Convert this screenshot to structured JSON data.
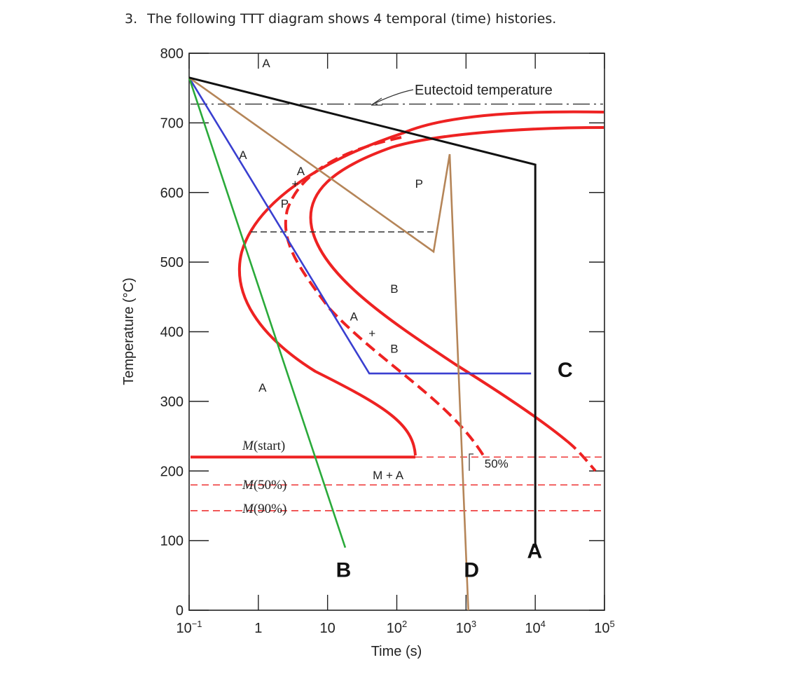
{
  "question": {
    "number": "3.",
    "text": "The following TTT diagram shows 4 temporal (time) histories."
  },
  "chart_data": {
    "type": "line",
    "title": "",
    "xlabel": "Time (s)",
    "ylabel": "Temperature (°C)",
    "x_scale": "log",
    "xlim": [
      0.1,
      100000
    ],
    "ylim": [
      0,
      800
    ],
    "x_ticks": [
      {
        "value": 0.1,
        "base": "10",
        "exp": "−1"
      },
      {
        "value": 1,
        "base": "1",
        "exp": ""
      },
      {
        "value": 10,
        "base": "10",
        "exp": ""
      },
      {
        "value": 100,
        "base": "10",
        "exp": "2"
      },
      {
        "value": 1000,
        "base": "10",
        "exp": "3"
      },
      {
        "value": 10000,
        "base": "10",
        "exp": "4"
      },
      {
        "value": 100000,
        "base": "10",
        "exp": "5"
      }
    ],
    "y_ticks": [
      0,
      100,
      200,
      300,
      400,
      500,
      600,
      700,
      800
    ],
    "reference_lines": [
      {
        "name": "eutectoid",
        "y": 727,
        "label": "Eutectoid temperature"
      },
      {
        "name": "m-start",
        "y": 220,
        "label": "M(start)",
        "label_main": "M",
        "label_paren": "(start)"
      },
      {
        "name": "m-50",
        "y": 180,
        "label": "M(50%)",
        "label_main": "M",
        "label_paren": "(50%)"
      },
      {
        "name": "m-90",
        "y": 143,
        "label": "M(90%)",
        "label_main": "M",
        "label_paren": "(90%)"
      }
    ],
    "region_labels": [
      {
        "text": "A",
        "x": 1.3,
        "y": 780
      },
      {
        "text": "A",
        "x": 0.6,
        "y": 648
      },
      {
        "text": "A",
        "x": 4.1,
        "y": 625
      },
      {
        "text": "+",
        "x": 3.4,
        "y": 607
      },
      {
        "text": "P",
        "x": 2.4,
        "y": 578
      },
      {
        "text": "P",
        "x": 210,
        "y": 607
      },
      {
        "text": "B",
        "x": 92,
        "y": 456
      },
      {
        "text": "A",
        "x": 24,
        "y": 416
      },
      {
        "text": "+",
        "x": 44,
        "y": 392
      },
      {
        "text": "B",
        "x": 92,
        "y": 370
      },
      {
        "text": "A",
        "x": 1.15,
        "y": 314
      },
      {
        "text": "M + A",
        "x": 75,
        "y": 188
      },
      {
        "text": "50%",
        "x": 2750,
        "y": 205
      }
    ],
    "series": [
      {
        "name": "C",
        "color": "#3a3fd0",
        "label": "C",
        "label_at": [
          27000,
          335
        ],
        "x": [
          0.1,
          40,
          40,
          8700
        ],
        "y": [
          765,
          340,
          340,
          340
        ]
      },
      {
        "name": "B",
        "color": "#2aaa3a",
        "label": "B",
        "label_at": [
          17,
          48
        ],
        "x": [
          0.1,
          18
        ],
        "y": [
          765,
          90
        ]
      },
      {
        "name": "D",
        "color": "#b58558",
        "label": "D",
        "label_at": [
          1200,
          48
        ],
        "x": [
          0.1,
          340,
          580,
          1080
        ],
        "y": [
          765,
          515,
          655,
          0
        ]
      },
      {
        "name": "A",
        "color": "#111111",
        "label": "A",
        "label_at": [
          9800,
          75
        ],
        "x": [
          0.1,
          10000,
          10000
        ],
        "y": [
          765,
          640,
          90
        ]
      }
    ],
    "legend": "none",
    "grid": false
  }
}
